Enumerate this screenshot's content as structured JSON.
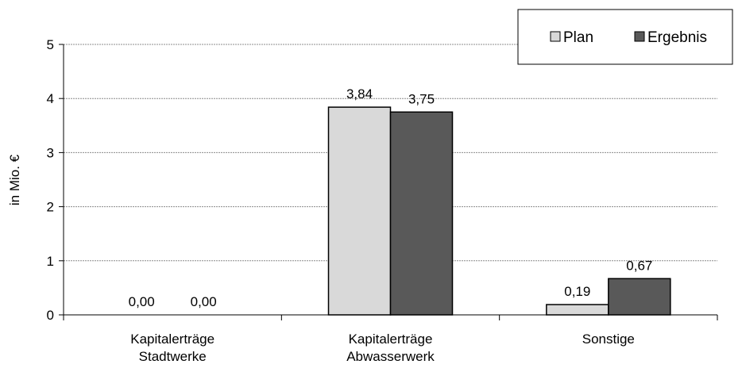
{
  "chart_data": {
    "type": "bar",
    "categories": [
      [
        "Kapitalerträge",
        "Stadtwerke"
      ],
      [
        "Kapitalerträge",
        "Abwasserwerk"
      ],
      [
        "Sonstige"
      ]
    ],
    "series": [
      {
        "name": "Plan",
        "values": [
          0.0,
          3.84,
          0.19
        ],
        "labels": [
          "0,00",
          "3,84",
          "0,19"
        ],
        "color": "#d9d9d9"
      },
      {
        "name": "Ergebnis",
        "values": [
          0.0,
          3.75,
          0.67
        ],
        "labels": [
          "0,00",
          "3,75",
          "0,67"
        ],
        "color": "#595959"
      }
    ],
    "ylabel": "in Mio. €",
    "ylim": [
      0,
      5
    ],
    "yticks": [
      "0",
      "1",
      "2",
      "3",
      "4",
      "5"
    ],
    "grid": true,
    "legend_position": "top-right"
  }
}
